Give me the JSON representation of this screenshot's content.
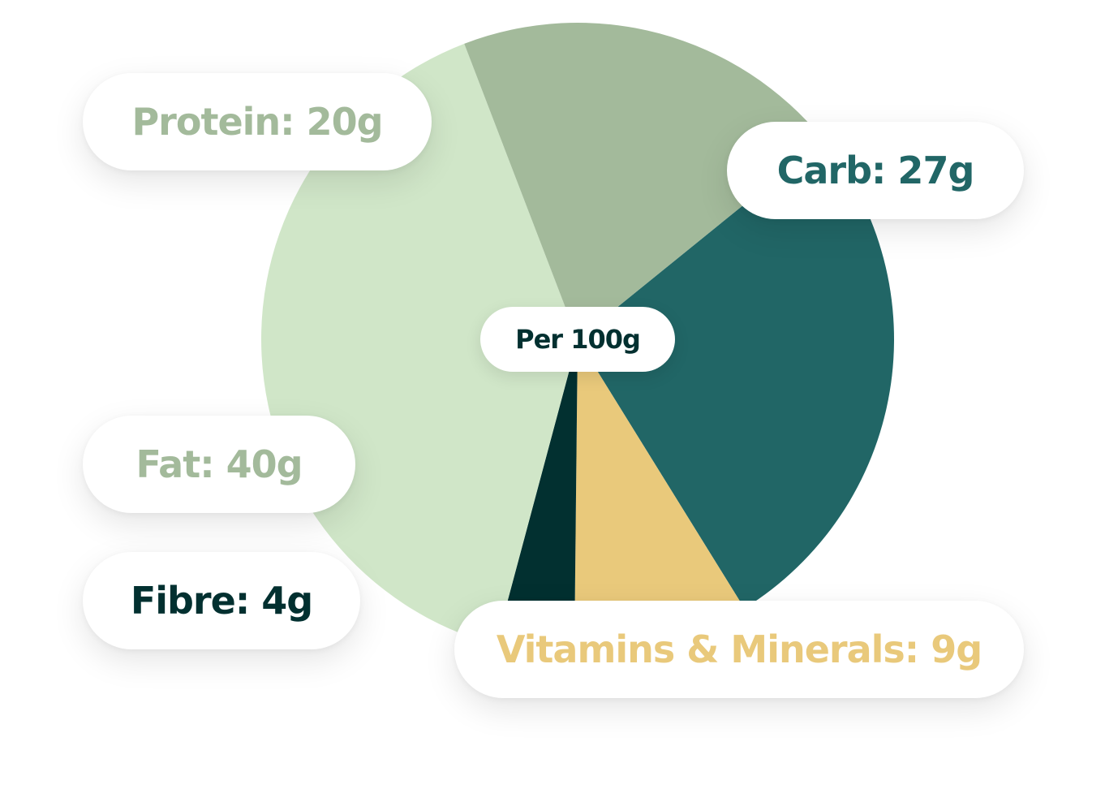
{
  "chart_data": {
    "type": "pie",
    "center_label": "Per 100g",
    "slices": [
      {
        "name": "Carb",
        "label": "Carb: 27g",
        "value": 27,
        "color": "#216666",
        "text_color": "#216666"
      },
      {
        "name": "Vitamins & Minerals",
        "label": "Vitamins & Minerals: 9g",
        "value": 9,
        "color": "#E9C97B",
        "text_color": "#E9C97B"
      },
      {
        "name": "Fibre",
        "label": "Fibre: 4g",
        "value": 4,
        "color": "#023030",
        "text_color": "#023030"
      },
      {
        "name": "Fat",
        "label": "Fat: 40g",
        "value": 40,
        "color": "#D0E6C8",
        "text_color": "#A3BA9B"
      },
      {
        "name": "Protein",
        "label": "Protein: 20g",
        "value": 20,
        "color": "#A3BA9B",
        "text_color": "#A3BA9B"
      }
    ]
  }
}
